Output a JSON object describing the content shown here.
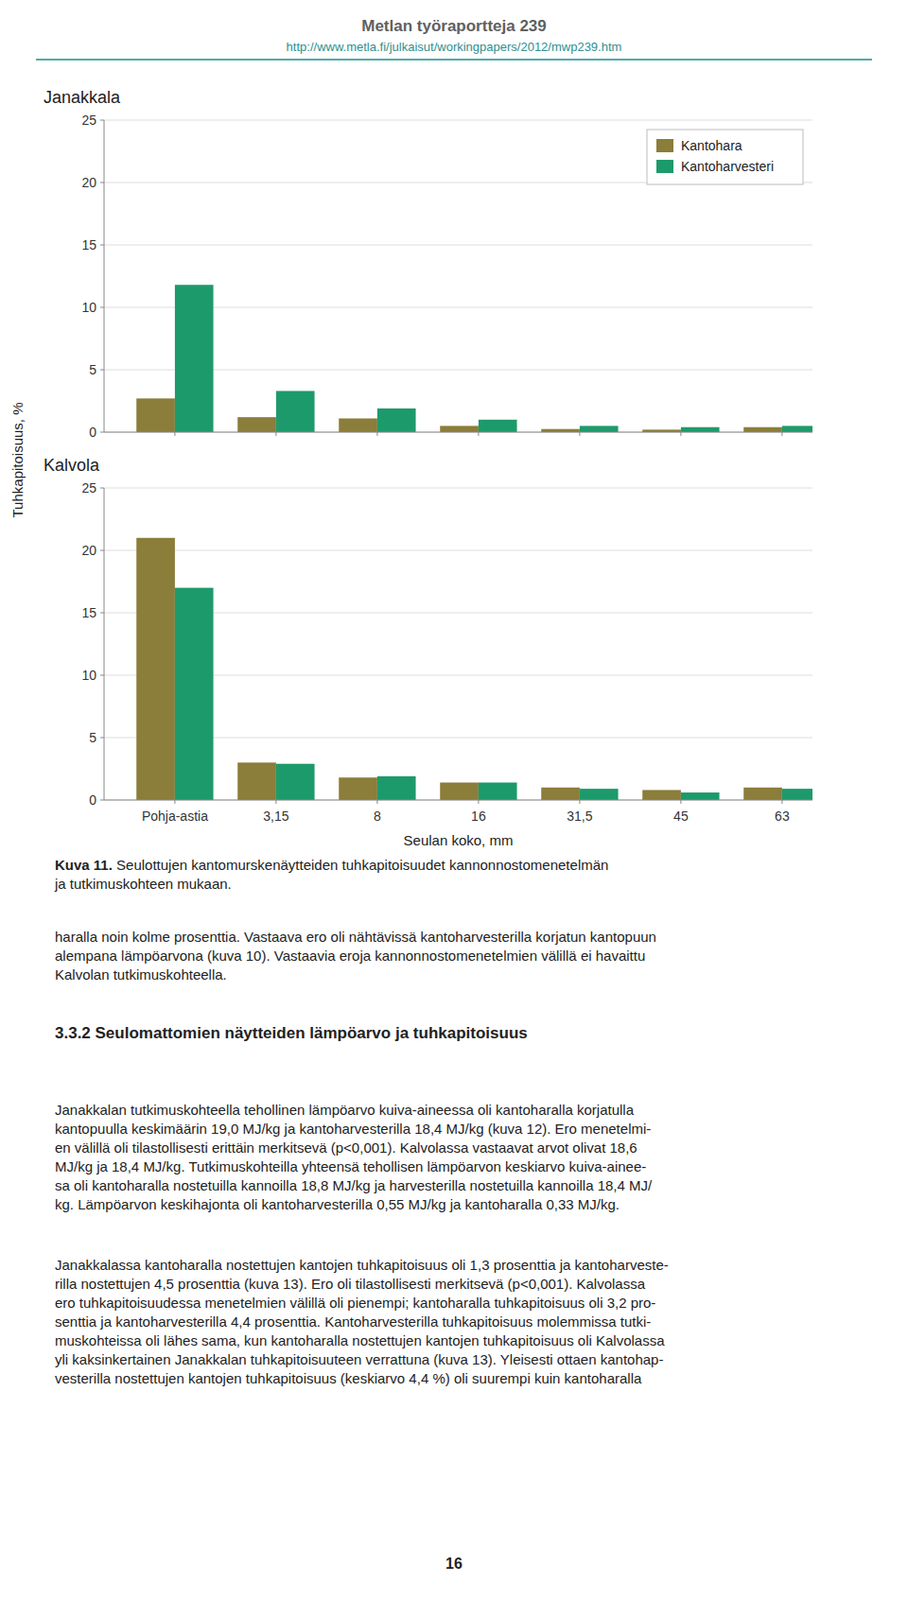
{
  "chart_data": [
    {
      "type": "bar",
      "title": "Janakkala",
      "categories": [
        "Pohja-astia",
        "3,15",
        "8",
        "16",
        "31,5",
        "45",
        "63"
      ],
      "series": [
        {
          "name": "Kantohara",
          "color": "#8B7D3A",
          "values": [
            2.7,
            1.2,
            1.1,
            0.5,
            0.25,
            0.2,
            0.4
          ]
        },
        {
          "name": "Kantoharvesteri",
          "color": "#1D9A6C",
          "values": [
            11.8,
            3.3,
            1.9,
            1.0,
            0.5,
            0.4,
            0.5
          ]
        }
      ],
      "ylim": [
        0,
        25
      ],
      "yticks": [
        0,
        5,
        10,
        15,
        20,
        25
      ],
      "ylabel": "Tuhkapitoisuus, %",
      "grid": true,
      "legend": "upper right",
      "tick_labels": "y"
    },
    {
      "type": "bar",
      "title": "Kalvola",
      "categories": [
        "Pohja-astia",
        "3,15",
        "8",
        "16",
        "31,5",
        "45",
        "63"
      ],
      "series": [
        {
          "name": "Kantohara",
          "color": "#8B7D3A",
          "values": [
            21.0,
            3.0,
            1.8,
            1.4,
            1.0,
            0.8,
            1.0
          ]
        },
        {
          "name": "Kantoharvesteri",
          "color": "#1D9A6C",
          "values": [
            17.0,
            2.9,
            1.9,
            1.4,
            0.9,
            0.6,
            0.9
          ]
        }
      ],
      "ylim": [
        0,
        25
      ],
      "yticks": [
        0,
        5,
        10,
        15,
        20,
        25
      ],
      "xlabel": "Seulan koko, mm",
      "grid": true
    }
  ],
  "page": {
    "title": "Metlan työraportteja 239",
    "url": "http://www.metla.fi/julkaisut/workingpapers/2012/mwp239.htm",
    "header_color": "#606060",
    "url_color": "#2E9090",
    "line_color": "#50AAAA",
    "caption_bold": "Kuva 11.",
    "caption_rest": " Seulottujen kantomurskenäytteiden tuhkapitoisuudet kannonnostomenetelmän\nja tutkimuskohteen mukaan.",
    "body_text": "haralla noin kolme prosenttia. Vastaava ero oli nähtävissä kantoharvesterilla korjatun kantopuun\nalempana lämpöarvona (kuva 10). Vastaavia eroja kannonnostomenetelmien välillä ei havaittu\nKalvolan tutkimuskohteella.",
    "heading": "3.3.2 Seulomattomien näytteiden lämpöarvo ja tuhkapitoisuus",
    "paragraphs": [
      "Janakkalan tutkimuskohteella tehollinen lämpöarvo kuiva-aineessa oli kantoharalla korjatulla\nkantopuulla keskimäärin 19,0 MJ/kg ja kantoharvesterilla 18,4 MJ/kg (kuva 12). Ero menetelmi-\nen välillä oli tilastollisesti erittäin merkitsevä (p<0,001). Kalvolassa vastaavat arvot olivat 18,6\nMJ/kg ja 18,4 MJ/kg. Tutkimuskohteilla yhteensä tehollisen lämpöarvon keskiarvo kuiva-ainee-\nsa oli kantoharalla nostetuilla kannoilla 18,8 MJ/kg ja harvesterilla nostetuilla kannoilla 18,4 MJ/\nkg. Lämpöarvon keskihajonta oli kantoharvesterilla 0,55 MJ/kg ja kantoharalla 0,33 MJ/kg.",
      "Janakkalassa kantoharalla nostettujen kantojen tuhkapitoisuus oli 1,3 prosenttia ja kantoharveste-\nrilla nostettujen 4,5 prosenttia (kuva 13). Ero oli tilastollisesti merkitsevä (p<0,001). Kalvolassa\nero tuhkapitoisuudessa menetelmien välillä oli pienempi; kantoharalla tuhkapitoisuus oli 3,2 pro-\nsenttia ja kantoharvesterilla 4,4 prosenttia. Kantoharvesterilla tuhkapitoisuus molemmissa tutki-\nmuskohteissa oli lähes sama, kun kantoharalla nostettujen kantojen tuhkapitoisuus oli Kalvolassa\nyli kaksinkertainen Janakkalan tuhkapitoisuuteen verrattuna (kuva 13). Yleisesti ottaen kantohар-\nvesterilla nostettujen kantojen tuhkapitoisuus (keskiarvo 4,4 %) oli suurempi kuin kantoharalla"
    ],
    "page_number": "16"
  }
}
